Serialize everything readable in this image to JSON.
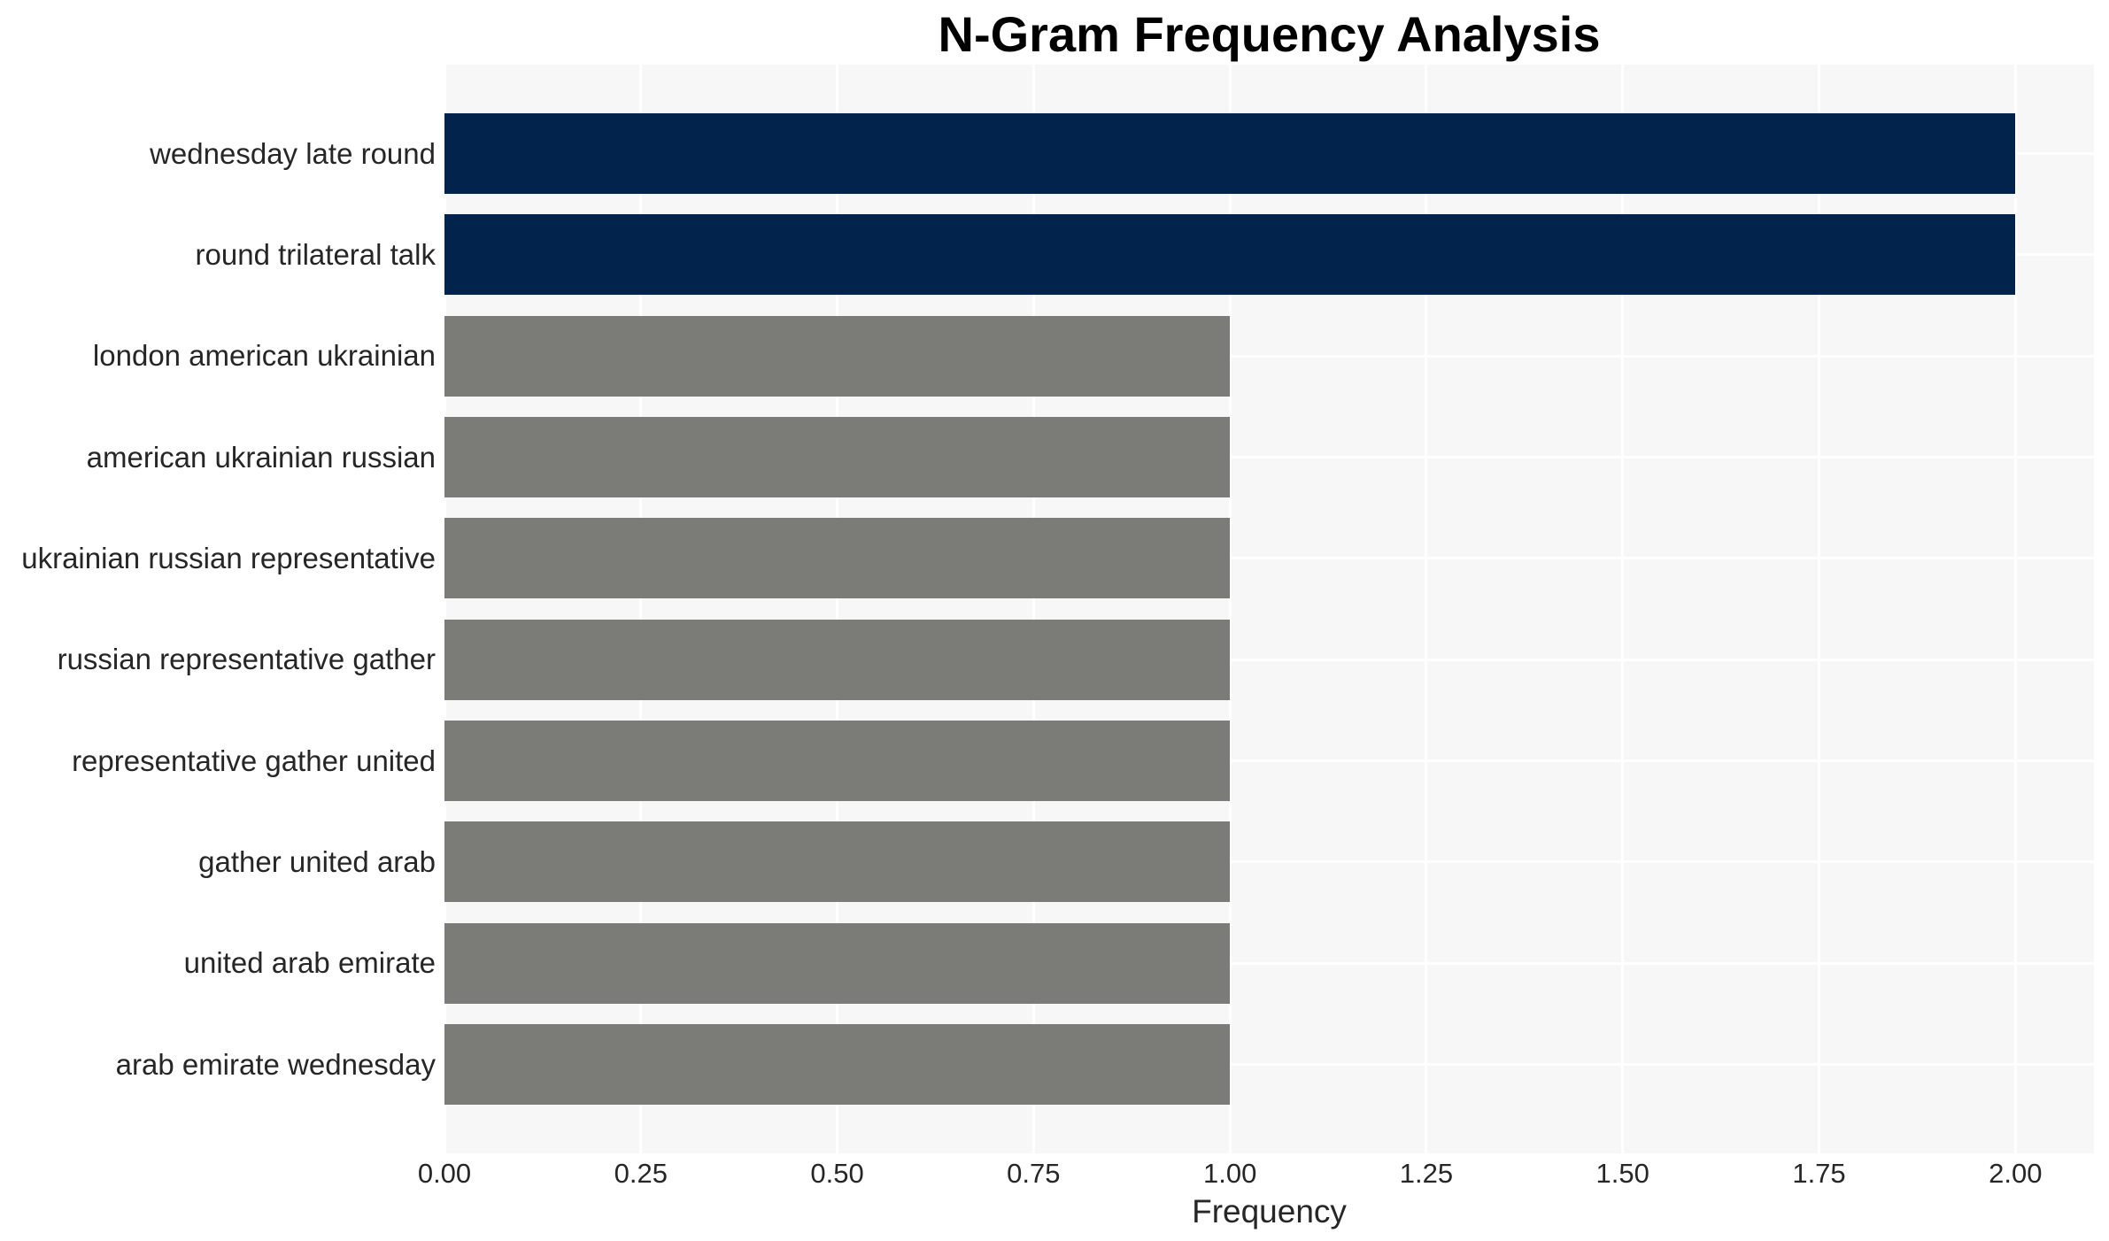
{
  "chart_data": {
    "type": "bar",
    "orientation": "horizontal",
    "title": "N-Gram Frequency Analysis",
    "xlabel": "Frequency",
    "ylabel": "",
    "categories": [
      "wednesday late round",
      "round trilateral talk",
      "london american ukrainian",
      "american ukrainian russian",
      "ukrainian russian representative",
      "russian representative gather",
      "representative gather united",
      "gather united arab",
      "united arab emirate",
      "arab emirate wednesday"
    ],
    "values": [
      2,
      2,
      1,
      1,
      1,
      1,
      1,
      1,
      1,
      1
    ],
    "bar_colors": [
      "#02234c",
      "#02234c",
      "#7b7b78",
      "#7b7b78",
      "#7b7b78",
      "#7b7b78",
      "#7b7b78",
      "#7b7b78",
      "#7b7b78",
      "#7b7b78"
    ],
    "x_ticks": [
      "0.00",
      "0.25",
      "0.50",
      "0.75",
      "1.00",
      "1.25",
      "1.50",
      "1.75",
      "2.00"
    ],
    "x_tick_values": [
      0,
      0.25,
      0.5,
      0.75,
      1.0,
      1.25,
      1.5,
      1.75,
      2.0
    ],
    "xlim": [
      0,
      2.1
    ],
    "grid": true,
    "legend": false,
    "colors": {
      "highlight_bar": "#02234c",
      "default_bar": "#7b7b78",
      "plot_background": "#f7f7f7",
      "gridline": "#ffffff",
      "text": "#262626",
      "title": "#000000"
    }
  }
}
